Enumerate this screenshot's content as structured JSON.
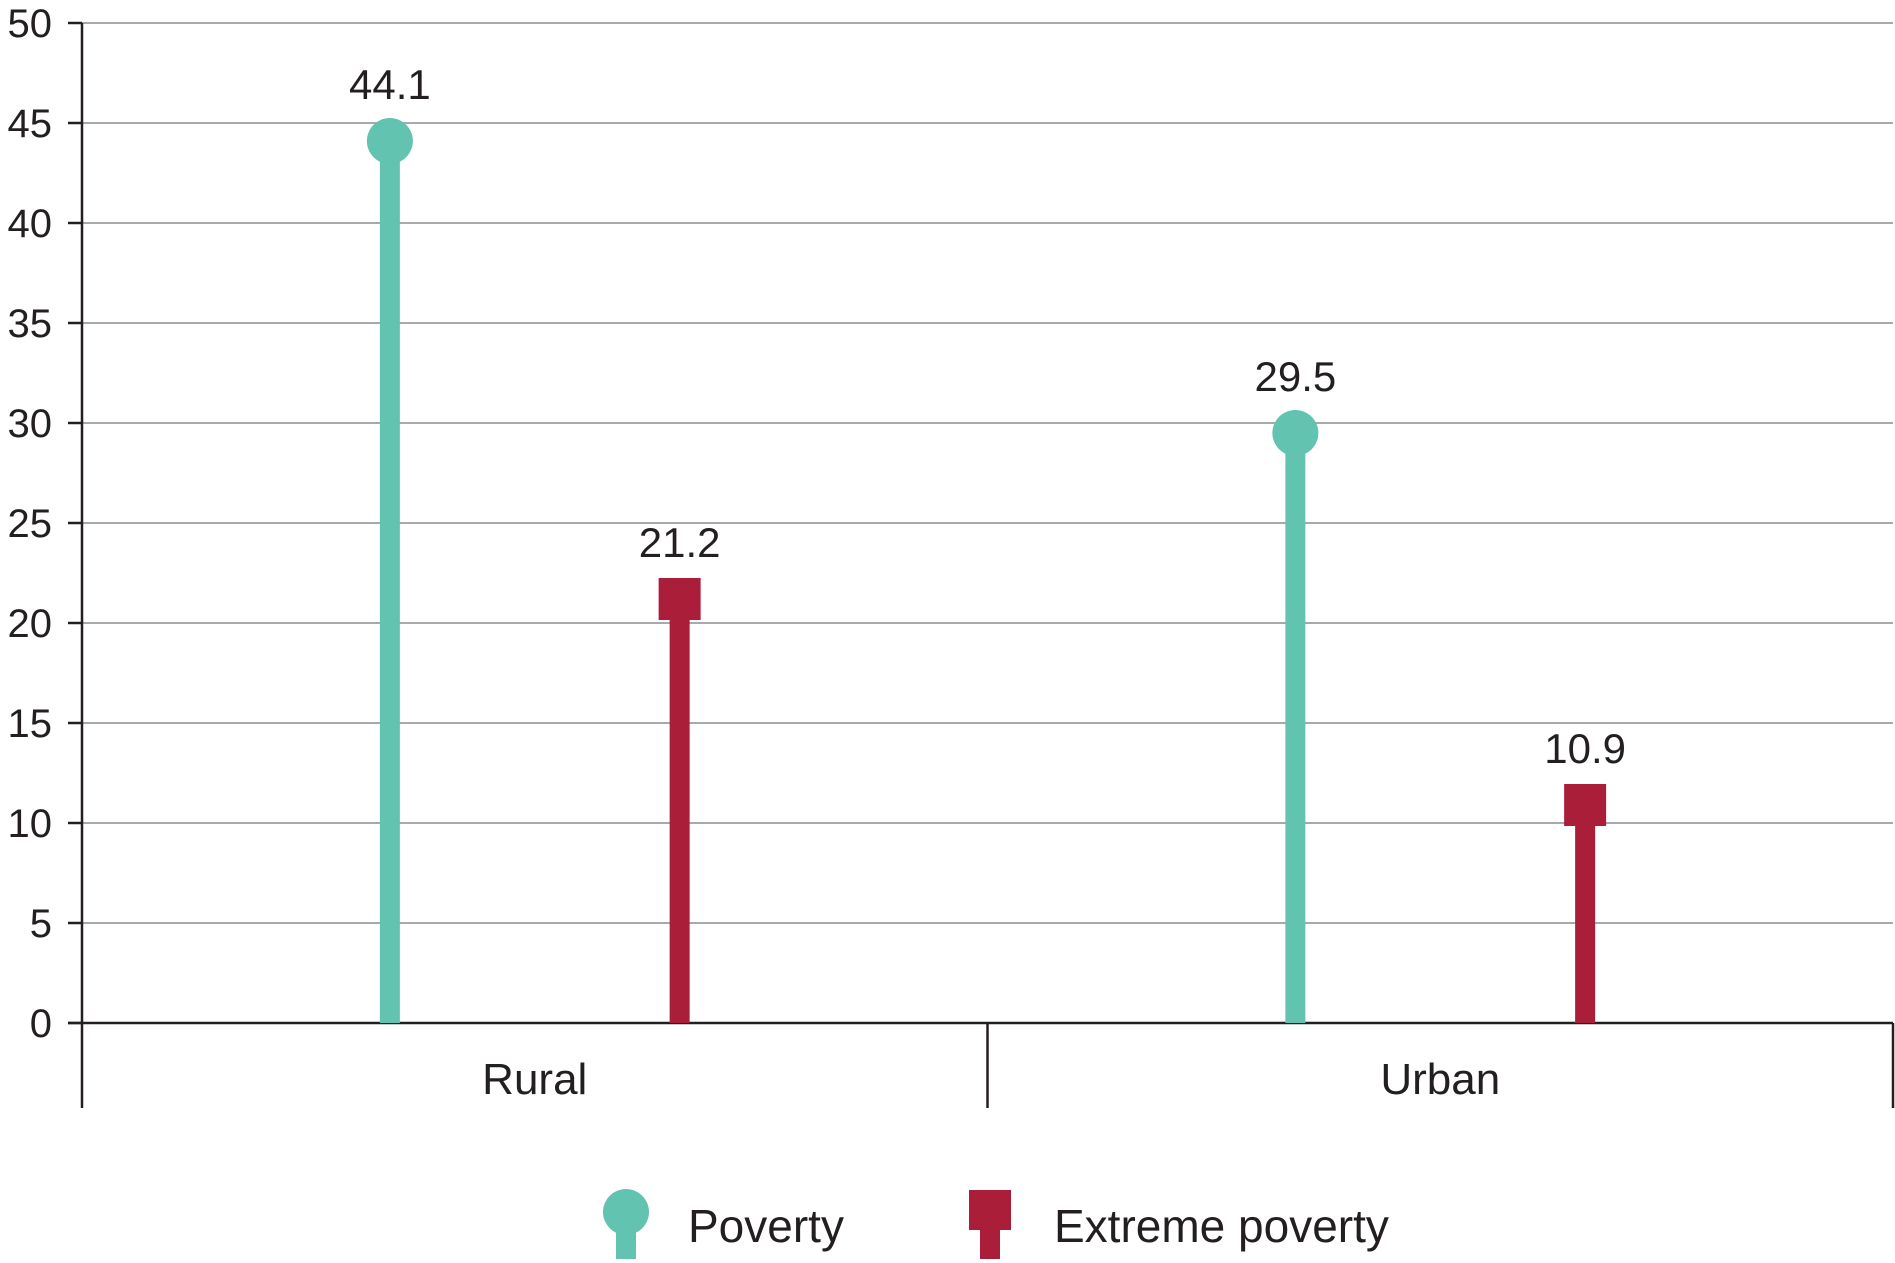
{
  "chart_data": {
    "type": "lollipop",
    "title": "",
    "xlabel": "",
    "ylabel": "",
    "categories": [
      "Rural",
      "Urban"
    ],
    "ylim": [
      0,
      50
    ],
    "yticks": [
      0,
      5,
      10,
      15,
      20,
      25,
      30,
      35,
      40,
      45,
      50
    ],
    "grid": true,
    "legend_position": "bottom-center",
    "series": [
      {
        "name": "Poverty",
        "marker": "circle",
        "color": "#62c3b0",
        "values": [
          44.1,
          29.5
        ],
        "labels": [
          "44.1",
          "29.5"
        ]
      },
      {
        "name": "Extreme poverty",
        "marker": "square",
        "color": "#ab1e3a",
        "values": [
          21.2,
          10.9
        ],
        "labels": [
          "21.2",
          "10.9"
        ]
      }
    ]
  }
}
